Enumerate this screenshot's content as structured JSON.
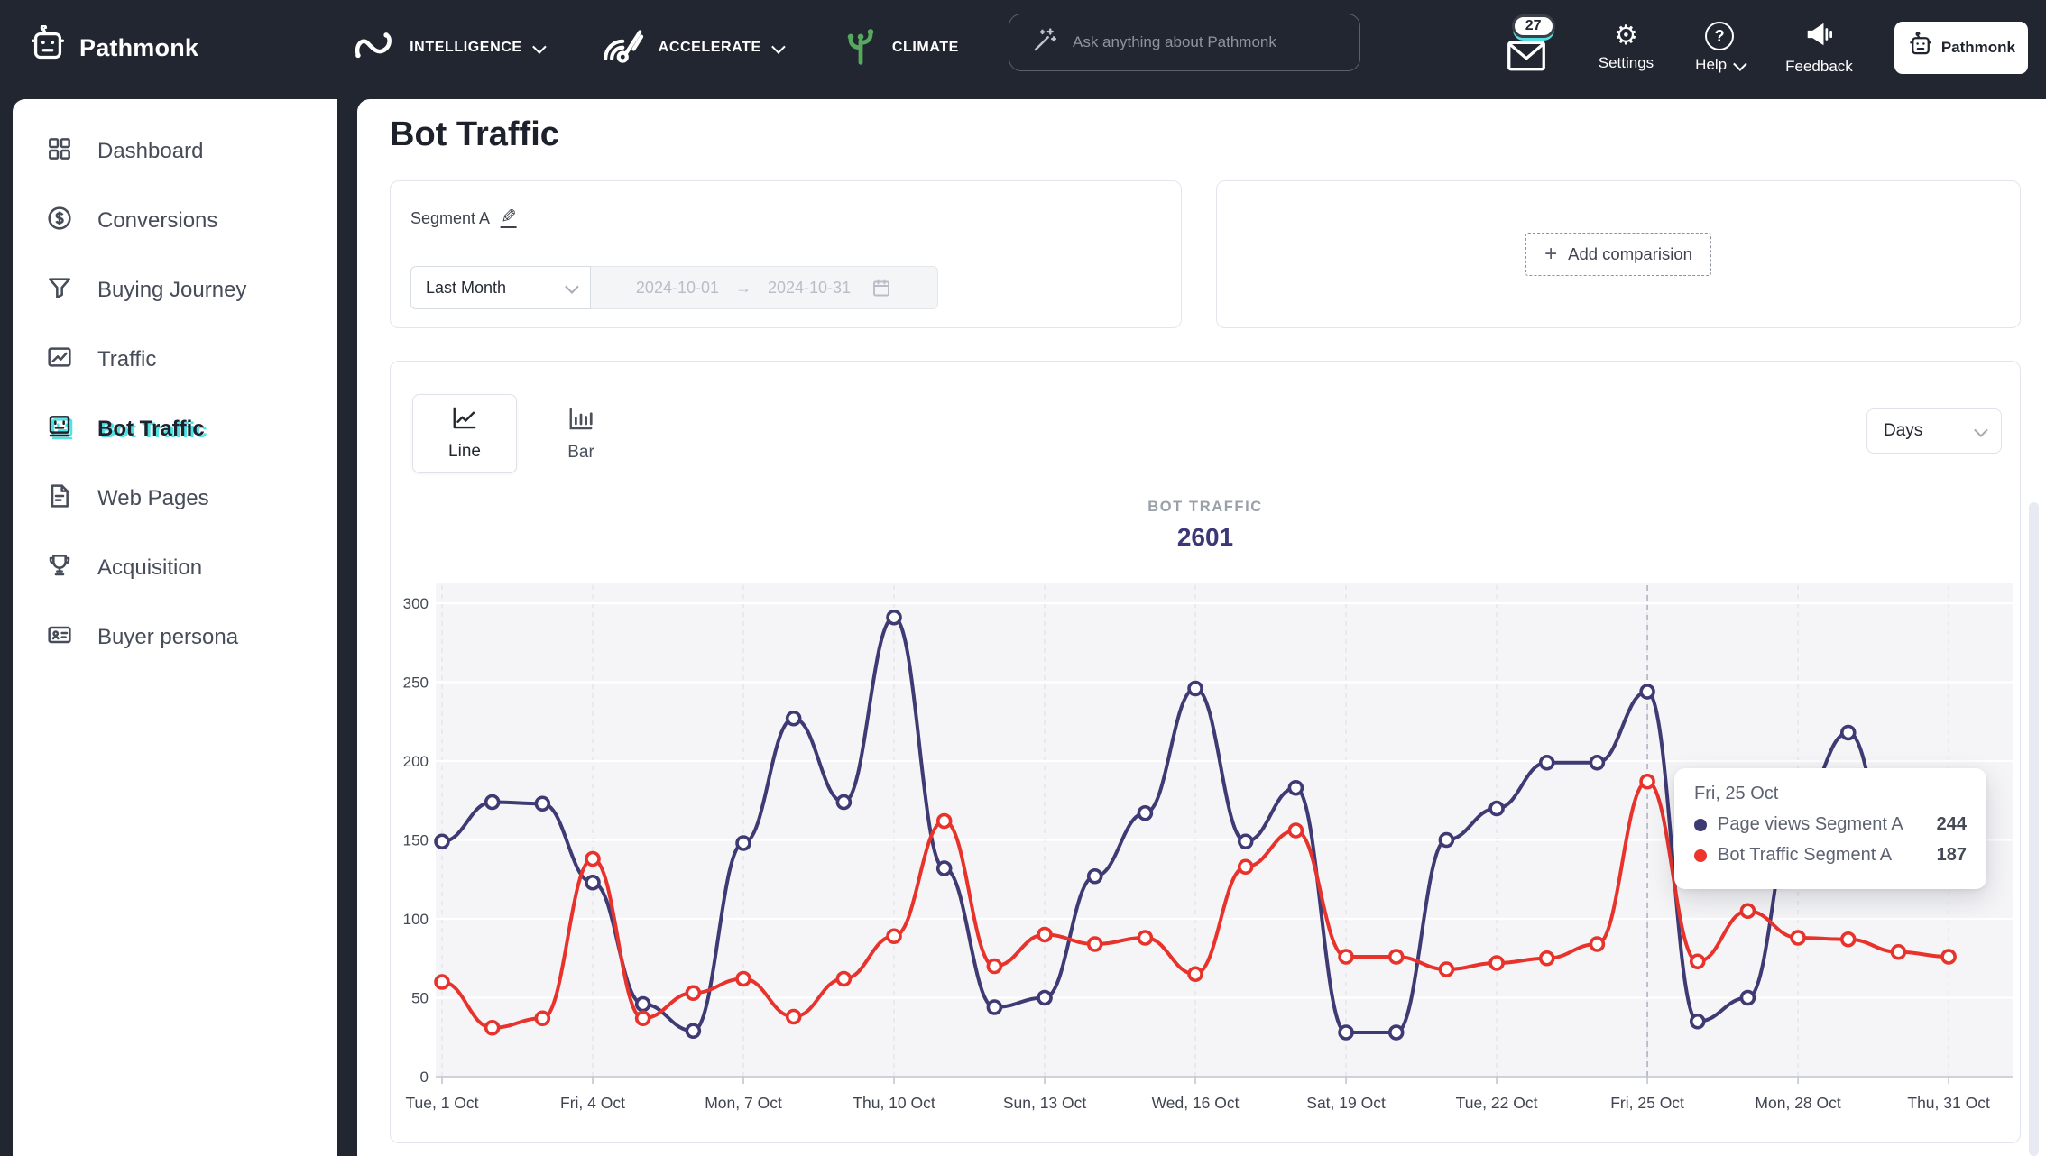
{
  "topnav": {
    "brand": "Pathmonk",
    "menus": [
      {
        "label": "INTELLIGENCE"
      },
      {
        "label": "ACCELERATE"
      },
      {
        "label": "CLIMATE"
      }
    ],
    "search_placeholder": "Ask anything about Pathmonk",
    "notification_count": "27",
    "settings_label": "Settings",
    "help_label": "Help",
    "feedback_label": "Feedback",
    "account_button": "Pathmonk"
  },
  "icons": {
    "plus": "+",
    "arrow": "→",
    "pencil": "✎",
    "gear": "⚙",
    "question": "?"
  },
  "sidebar": {
    "items": [
      {
        "label": "Dashboard"
      },
      {
        "label": "Conversions"
      },
      {
        "label": "Buying Journey"
      },
      {
        "label": "Traffic"
      },
      {
        "label": "Bot Traffic",
        "active": true
      },
      {
        "label": "Web Pages"
      },
      {
        "label": "Acquisition"
      },
      {
        "label": "Buyer persona"
      }
    ]
  },
  "page": {
    "title": "Bot Traffic"
  },
  "segment_card": {
    "name": "Segment A",
    "range_preset": "Last Month",
    "date_from": "2024-10-01",
    "date_to": "2024-10-31"
  },
  "comparison_card": {
    "button_label": "Add comparision"
  },
  "chart_card": {
    "line_label": "Line",
    "bar_label": "Bar",
    "interval_value": "Days",
    "metric_label": "BOT TRAFFIC",
    "metric_value": "2601"
  },
  "tooltip": {
    "title": "Fri, 25 Oct",
    "rows": [
      {
        "label": "Page views Segment A",
        "value": "244",
        "color": "#3e3a73"
      },
      {
        "label": "Bot Traffic Segment A",
        "value": "187",
        "color": "#ee352c"
      }
    ]
  },
  "chart_data": {
    "type": "line",
    "title": "BOT TRAFFIC",
    "total": 2601,
    "x_days": [
      1,
      2,
      3,
      4,
      5,
      6,
      7,
      8,
      9,
      10,
      11,
      12,
      13,
      14,
      15,
      16,
      17,
      18,
      19,
      20,
      21,
      22,
      23,
      24,
      25,
      26,
      27,
      28,
      29,
      30,
      31
    ],
    "series": [
      {
        "name": "Page views Segment A",
        "color": "#3e3a73",
        "values": [
          149,
          174,
          173,
          123,
          46,
          29,
          148,
          227,
          174,
          291,
          132,
          44,
          50,
          127,
          167,
          246,
          149,
          183,
          28,
          28,
          150,
          170,
          199,
          199,
          244,
          35,
          50,
          170,
          218,
          127,
          160
        ]
      },
      {
        "name": "Bot Traffic Segment A",
        "color": "#e8332c",
        "values": [
          60,
          31,
          37,
          138,
          37,
          53,
          62,
          38,
          62,
          89,
          162,
          70,
          90,
          84,
          88,
          65,
          133,
          156,
          76,
          76,
          68,
          72,
          75,
          84,
          187,
          73,
          105,
          88,
          87,
          79,
          76
        ]
      }
    ],
    "ylim": [
      0,
      300
    ],
    "y_ticks": [
      0,
      50,
      100,
      150,
      200,
      250,
      300
    ],
    "tick_indices": [
      0,
      3,
      6,
      9,
      12,
      15,
      18,
      21,
      24,
      27,
      30
    ],
    "x_tick_labels": [
      "Tue, 1 Oct",
      "Fri, 4 Oct",
      "Mon, 7 Oct",
      "Thu, 10 Oct",
      "Sun, 13 Oct",
      "Wed, 16 Oct",
      "Sat, 19 Oct",
      "Tue, 22 Oct",
      "Fri, 25 Oct",
      "Mon, 28 Oct",
      "Thu, 31 Oct"
    ],
    "hover_index": 24,
    "grid": true,
    "legend_position": "tooltip-only",
    "plot_bg": "#f5f5f7"
  }
}
